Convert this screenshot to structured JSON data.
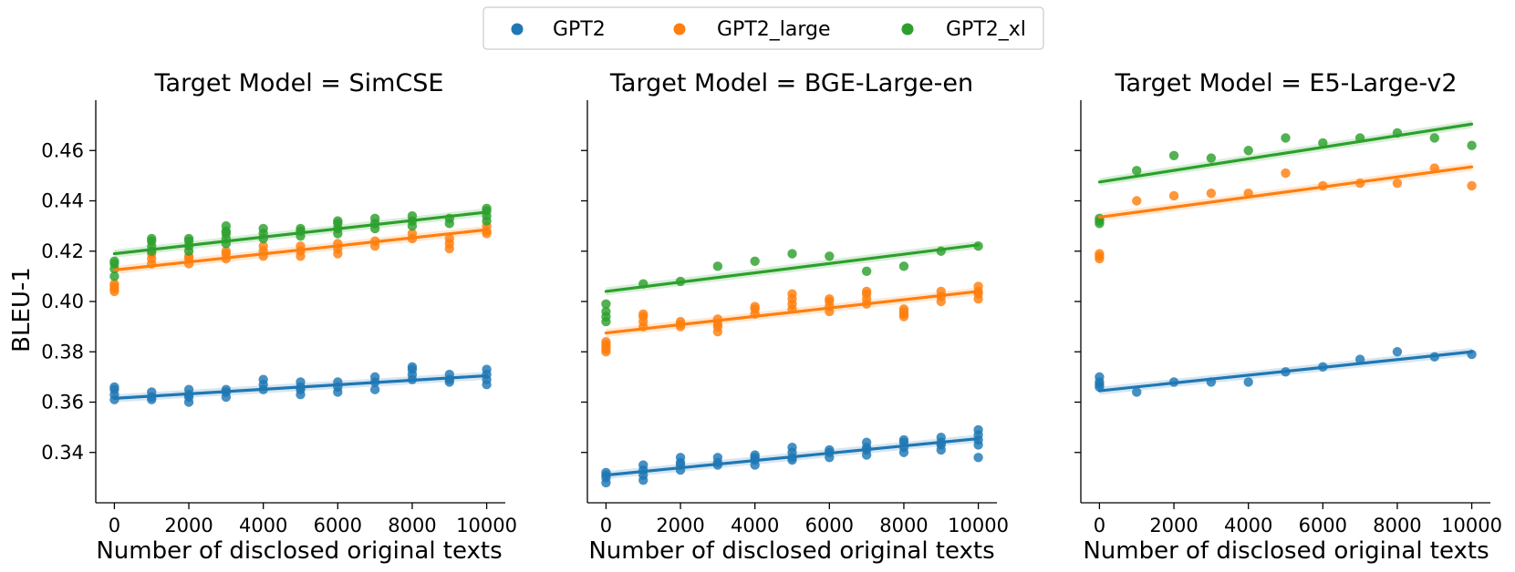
{
  "chart_data": {
    "type": "scatter",
    "legend": {
      "position": "top-center",
      "entries": [
        {
          "name": "GPT2",
          "color": "#1f77b4"
        },
        {
          "name": "GPT2_large",
          "color": "#ff7f0e"
        },
        {
          "name": "GPT2_xl",
          "color": "#2ca02c"
        }
      ]
    },
    "ylabel": "BLEU-1",
    "xlabel": "Number of disclosed original texts",
    "ylim": [
      0.32,
      0.48
    ],
    "yticks": [
      "0.34",
      "0.36",
      "0.38",
      "0.40",
      "0.42",
      "0.44",
      "0.46"
    ],
    "xlim": [
      -500,
      10500
    ],
    "xticks": [
      "0",
      "2000",
      "4000",
      "6000",
      "8000",
      "10000"
    ],
    "panels": [
      {
        "title": "Target Model = SimCSE",
        "series": [
          {
            "name": "GPT2",
            "color": "#1f77b4",
            "x": [
              0,
              0,
              0,
              0,
              1000,
              1000,
              1000,
              2000,
              2000,
              2000,
              2000,
              3000,
              3000,
              3000,
              4000,
              4000,
              4000,
              5000,
              5000,
              5000,
              5000,
              6000,
              6000,
              6000,
              7000,
              7000,
              7000,
              8000,
              8000,
              8000,
              8000,
              9000,
              9000,
              9000,
              10000,
              10000,
              10000,
              10000
            ],
            "y": [
              0.361,
              0.363,
              0.365,
              0.366,
              0.361,
              0.362,
              0.364,
              0.36,
              0.362,
              0.363,
              0.365,
              0.362,
              0.364,
              0.365,
              0.365,
              0.367,
              0.369,
              0.363,
              0.365,
              0.366,
              0.368,
              0.364,
              0.366,
              0.368,
              0.365,
              0.368,
              0.37,
              0.369,
              0.371,
              0.373,
              0.374,
              0.368,
              0.369,
              0.371,
              0.367,
              0.369,
              0.371,
              0.373
            ],
            "fit": [
              0.3615,
              0.3705
            ]
          },
          {
            "name": "GPT2_large",
            "color": "#ff7f0e",
            "x": [
              0,
              0,
              0,
              0,
              1000,
              1000,
              1000,
              2000,
              2000,
              2000,
              3000,
              3000,
              3000,
              4000,
              4000,
              4000,
              5000,
              5000,
              5000,
              6000,
              6000,
              6000,
              7000,
              7000,
              8000,
              8000,
              9000,
              9000,
              9000,
              10000,
              10000,
              10000
            ],
            "y": [
              0.404,
              0.405,
              0.406,
              0.407,
              0.415,
              0.417,
              0.419,
              0.415,
              0.417,
              0.418,
              0.417,
              0.419,
              0.42,
              0.418,
              0.42,
              0.422,
              0.418,
              0.42,
              0.422,
              0.419,
              0.421,
              0.423,
              0.422,
              0.424,
              0.425,
              0.427,
              0.421,
              0.423,
              0.425,
              0.427,
              0.428,
              0.43
            ],
            "fit": [
              0.4125,
              0.4285
            ]
          },
          {
            "name": "GPT2_xl",
            "color": "#2ca02c",
            "x": [
              0,
              0,
              0,
              0,
              1000,
              1000,
              1000,
              1000,
              2000,
              2000,
              2000,
              2000,
              3000,
              3000,
              3000,
              3000,
              3000,
              4000,
              4000,
              4000,
              5000,
              5000,
              5000,
              6000,
              6000,
              6000,
              6000,
              7000,
              7000,
              7000,
              8000,
              8000,
              8000,
              9000,
              9000,
              10000,
              10000,
              10000,
              10000
            ],
            "y": [
              0.41,
              0.413,
              0.415,
              0.416,
              0.42,
              0.422,
              0.424,
              0.425,
              0.42,
              0.422,
              0.424,
              0.425,
              0.423,
              0.425,
              0.427,
              0.428,
              0.43,
              0.425,
              0.427,
              0.429,
              0.426,
              0.428,
              0.429,
              0.427,
              0.429,
              0.431,
              0.432,
              0.429,
              0.431,
              0.433,
              0.43,
              0.432,
              0.434,
              0.431,
              0.433,
              0.432,
              0.434,
              0.436,
              0.437
            ],
            "fit": [
              0.419,
              0.4355
            ]
          }
        ]
      },
      {
        "title": "Target Model = BGE-Large-en",
        "series": [
          {
            "name": "GPT2",
            "color": "#1f77b4",
            "x": [
              0,
              0,
              0,
              0,
              1000,
              1000,
              1000,
              1000,
              2000,
              2000,
              2000,
              2000,
              3000,
              3000,
              3000,
              4000,
              4000,
              4000,
              4000,
              5000,
              5000,
              5000,
              5000,
              6000,
              6000,
              6000,
              7000,
              7000,
              7000,
              7000,
              8000,
              8000,
              8000,
              8000,
              9000,
              9000,
              9000,
              9000,
              10000,
              10000,
              10000,
              10000,
              10000
            ],
            "y": [
              0.328,
              0.33,
              0.331,
              0.332,
              0.329,
              0.331,
              0.333,
              0.335,
              0.333,
              0.335,
              0.336,
              0.338,
              0.335,
              0.336,
              0.338,
              0.335,
              0.337,
              0.338,
              0.339,
              0.337,
              0.338,
              0.34,
              0.342,
              0.338,
              0.34,
              0.341,
              0.339,
              0.341,
              0.342,
              0.344,
              0.34,
              0.342,
              0.344,
              0.345,
              0.341,
              0.343,
              0.344,
              0.346,
              0.338,
              0.343,
              0.345,
              0.347,
              0.349
            ],
            "fit": [
              0.331,
              0.3455
            ]
          },
          {
            "name": "GPT2_large",
            "color": "#ff7f0e",
            "x": [
              0,
              0,
              0,
              0,
              0,
              1000,
              1000,
              1000,
              1000,
              2000,
              2000,
              2000,
              3000,
              3000,
              3000,
              3000,
              4000,
              4000,
              4000,
              5000,
              5000,
              5000,
              5000,
              6000,
              6000,
              6000,
              6000,
              7000,
              7000,
              7000,
              7000,
              8000,
              8000,
              8000,
              8000,
              9000,
              9000,
              9000,
              10000,
              10000,
              10000,
              10000
            ],
            "y": [
              0.38,
              0.381,
              0.382,
              0.383,
              0.384,
              0.39,
              0.392,
              0.394,
              0.395,
              0.39,
              0.391,
              0.392,
              0.388,
              0.39,
              0.391,
              0.393,
              0.395,
              0.397,
              0.398,
              0.397,
              0.399,
              0.401,
              0.403,
              0.396,
              0.398,
              0.4,
              0.401,
              0.399,
              0.401,
              0.403,
              0.404,
              0.394,
              0.395,
              0.396,
              0.397,
              0.4,
              0.402,
              0.404,
              0.401,
              0.403,
              0.404,
              0.406
            ],
            "fit": [
              0.3875,
              0.404
            ]
          },
          {
            "name": "GPT2_xl",
            "color": "#2ca02c",
            "x": [
              0,
              0,
              0,
              0,
              1000,
              2000,
              3000,
              4000,
              5000,
              6000,
              7000,
              8000,
              9000,
              10000
            ],
            "y": [
              0.392,
              0.394,
              0.396,
              0.399,
              0.407,
              0.408,
              0.414,
              0.416,
              0.419,
              0.418,
              0.412,
              0.414,
              0.42,
              0.422
            ],
            "fit": [
              0.404,
              0.4225
            ]
          }
        ]
      },
      {
        "title": "Target Model = E5-Large-v2",
        "series": [
          {
            "name": "GPT2",
            "color": "#1f77b4",
            "x": [
              0,
              0,
              0,
              0,
              1000,
              2000,
              3000,
              4000,
              5000,
              6000,
              7000,
              8000,
              9000,
              10000
            ],
            "y": [
              0.366,
              0.367,
              0.368,
              0.37,
              0.364,
              0.368,
              0.368,
              0.368,
              0.372,
              0.374,
              0.377,
              0.38,
              0.378,
              0.379
            ],
            "fit": [
              0.3645,
              0.38
            ]
          },
          {
            "name": "GPT2_large",
            "color": "#ff7f0e",
            "x": [
              0,
              0,
              0,
              1000,
              2000,
              3000,
              4000,
              5000,
              6000,
              7000,
              8000,
              9000,
              10000
            ],
            "y": [
              0.417,
              0.418,
              0.419,
              0.44,
              0.442,
              0.443,
              0.443,
              0.451,
              0.446,
              0.447,
              0.447,
              0.453,
              0.446
            ],
            "fit": [
              0.4335,
              0.4535
            ]
          },
          {
            "name": "GPT2_xl",
            "color": "#2ca02c",
            "x": [
              0,
              0,
              0,
              1000,
              2000,
              3000,
              4000,
              5000,
              6000,
              7000,
              8000,
              9000,
              10000
            ],
            "y": [
              0.431,
              0.432,
              0.433,
              0.452,
              0.458,
              0.457,
              0.46,
              0.465,
              0.463,
              0.465,
              0.467,
              0.465,
              0.462
            ],
            "fit": [
              0.4475,
              0.4705
            ]
          }
        ]
      }
    ]
  }
}
